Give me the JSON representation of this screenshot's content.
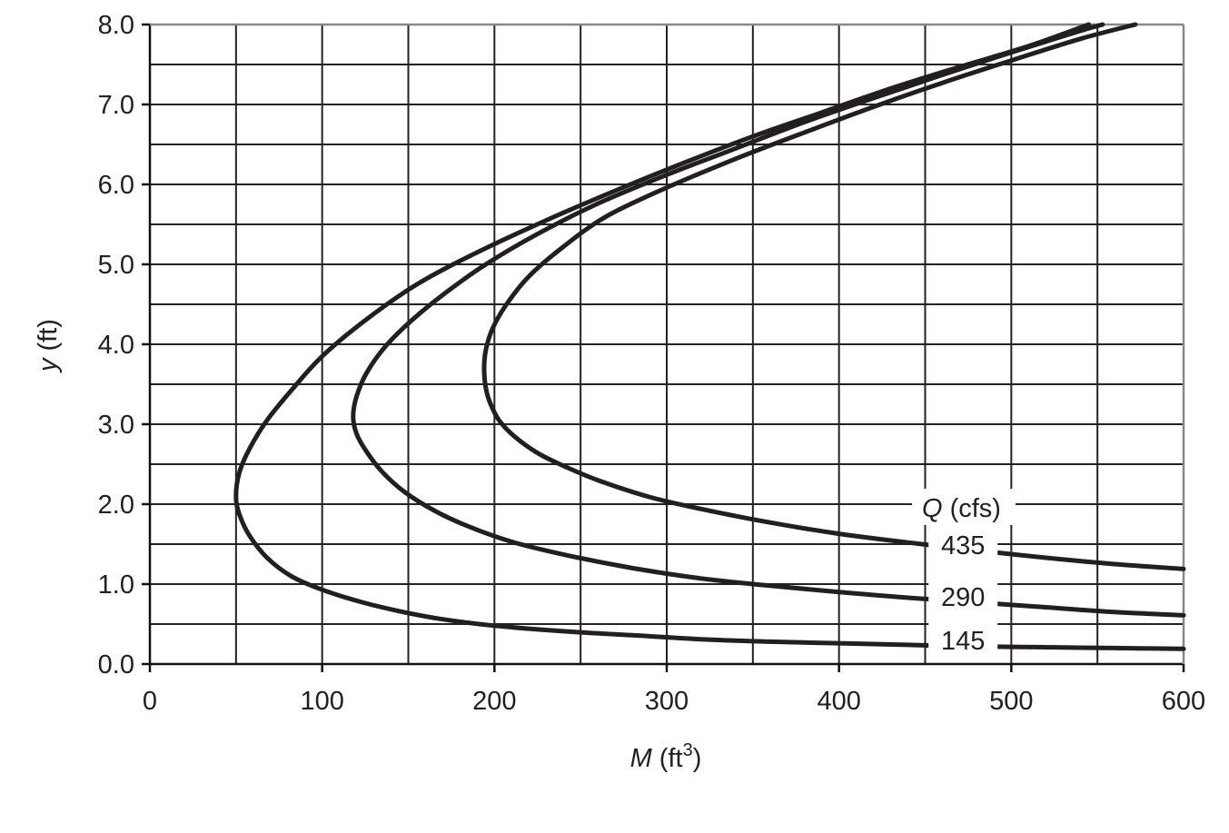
{
  "chart_data": {
    "type": "line",
    "title": "",
    "xlabel": {
      "symbol": "M",
      "unit": "ft",
      "exponent": "3",
      "open": "(",
      "close": ")"
    },
    "ylabel": {
      "symbol": "y",
      "unit": "(ft)"
    },
    "xlim": [
      0,
      600
    ],
    "ylim": [
      0,
      8
    ],
    "x_ticks": [
      0,
      100,
      200,
      300,
      400,
      500,
      600
    ],
    "x_tick_labels": [
      "0",
      "100",
      "200",
      "300",
      "400",
      "500",
      "600"
    ],
    "y_ticks": [
      0,
      1,
      2,
      3,
      4,
      5,
      6,
      7,
      8
    ],
    "y_tick_labels": [
      "0.0",
      "1.0",
      "2.0",
      "3.0",
      "4.0",
      "5.0",
      "6.0",
      "7.0",
      "8.0"
    ],
    "grid": {
      "x_step": 50,
      "y_step": 0.5,
      "visible": true
    },
    "legend": {
      "symbol": "Q",
      "unit": "(cfs)",
      "placement": "lower-right, inline labels"
    },
    "series": [
      {
        "name": "435",
        "label_at": [
          472,
          1.42
        ],
        "points": [
          [
            600,
            1.19
          ],
          [
            560,
            1.25
          ],
          [
            520,
            1.33
          ],
          [
            480,
            1.42
          ],
          [
            440,
            1.52
          ],
          [
            400,
            1.63
          ],
          [
            360,
            1.77
          ],
          [
            320,
            1.94
          ],
          [
            290,
            2.09
          ],
          [
            260,
            2.3
          ],
          [
            240,
            2.48
          ],
          [
            225,
            2.64
          ],
          [
            212,
            2.84
          ],
          [
            203,
            3.04
          ],
          [
            198,
            3.24
          ],
          [
            195,
            3.45
          ],
          [
            194,
            3.7
          ],
          [
            195,
            3.93
          ],
          [
            199,
            4.2
          ],
          [
            207,
            4.5
          ],
          [
            220,
            4.85
          ],
          [
            240,
            5.22
          ],
          [
            265,
            5.6
          ],
          [
            300,
            5.96
          ],
          [
            340,
            6.32
          ],
          [
            380,
            6.65
          ],
          [
            420,
            6.97
          ],
          [
            460,
            7.27
          ],
          [
            500,
            7.55
          ],
          [
            540,
            7.82
          ],
          [
            572,
            8.0
          ]
        ]
      },
      {
        "name": "290",
        "label_at": [
          472,
          0.77
        ],
        "points": [
          [
            600,
            0.61
          ],
          [
            560,
            0.65
          ],
          [
            520,
            0.71
          ],
          [
            480,
            0.77
          ],
          [
            440,
            0.83
          ],
          [
            400,
            0.9
          ],
          [
            360,
            0.98
          ],
          [
            320,
            1.07
          ],
          [
            280,
            1.2
          ],
          [
            240,
            1.37
          ],
          [
            210,
            1.53
          ],
          [
            185,
            1.72
          ],
          [
            165,
            1.92
          ],
          [
            148,
            2.15
          ],
          [
            135,
            2.4
          ],
          [
            126,
            2.65
          ],
          [
            120,
            2.88
          ],
          [
            118,
            3.1
          ],
          [
            120,
            3.35
          ],
          [
            126,
            3.65
          ],
          [
            137,
            3.98
          ],
          [
            152,
            4.3
          ],
          [
            172,
            4.65
          ],
          [
            195,
            5.0
          ],
          [
            225,
            5.38
          ],
          [
            260,
            5.76
          ],
          [
            300,
            6.12
          ],
          [
            340,
            6.45
          ],
          [
            380,
            6.78
          ],
          [
            420,
            7.08
          ],
          [
            460,
            7.37
          ],
          [
            500,
            7.65
          ],
          [
            540,
            7.92
          ],
          [
            553,
            8.0
          ]
        ]
      },
      {
        "name": "145",
        "label_at": [
          472,
          0.23
        ],
        "points": [
          [
            600,
            0.19
          ],
          [
            560,
            0.2
          ],
          [
            520,
            0.21
          ],
          [
            480,
            0.22
          ],
          [
            440,
            0.24
          ],
          [
            400,
            0.26
          ],
          [
            360,
            0.28
          ],
          [
            320,
            0.31
          ],
          [
            280,
            0.36
          ],
          [
            240,
            0.41
          ],
          [
            200,
            0.48
          ],
          [
            170,
            0.56
          ],
          [
            145,
            0.66
          ],
          [
            122,
            0.78
          ],
          [
            100,
            0.93
          ],
          [
            82,
            1.1
          ],
          [
            68,
            1.33
          ],
          [
            58,
            1.6
          ],
          [
            52,
            1.87
          ],
          [
            50,
            2.1
          ],
          [
            52,
            2.4
          ],
          [
            58,
            2.7
          ],
          [
            68,
            3.05
          ],
          [
            82,
            3.42
          ],
          [
            100,
            3.85
          ],
          [
            125,
            4.3
          ],
          [
            155,
            4.75
          ],
          [
            190,
            5.15
          ],
          [
            230,
            5.55
          ],
          [
            270,
            5.92
          ],
          [
            310,
            6.27
          ],
          [
            350,
            6.6
          ],
          [
            390,
            6.9
          ],
          [
            430,
            7.2
          ],
          [
            470,
            7.47
          ],
          [
            510,
            7.73
          ],
          [
            545,
            8.0
          ]
        ]
      }
    ]
  }
}
